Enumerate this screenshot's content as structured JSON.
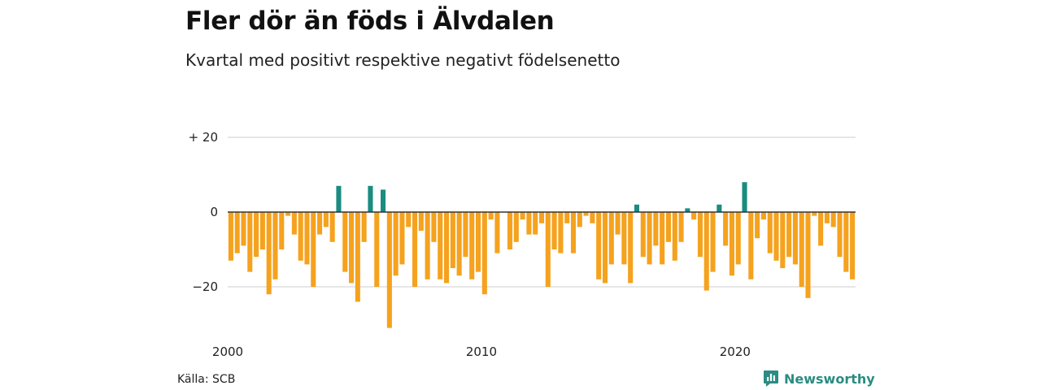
{
  "header": {
    "title": "Fler dör än föds i Älvdalen",
    "subtitle": "Kvartal med positivt respektive negativt födelsenetto"
  },
  "footer": {
    "source": "Källa: SCB",
    "brand": "Newsworthy",
    "brand_icon": "bar-chart-speech-icon"
  },
  "colors": {
    "positive": "#1a8c80",
    "negative": "#f5a21e",
    "gridline": "#dddddd",
    "zeroline": "#333333",
    "brand": "#2a8c82"
  },
  "chart_data": {
    "type": "bar",
    "x_start": "2000 Q1",
    "x_tick_labels": [
      "2000",
      "2010",
      "2020"
    ],
    "y_tick_labels": [
      "+ 20",
      "0",
      "−20"
    ],
    "y_ticks": [
      20,
      0,
      -20
    ],
    "ylim": [
      -31,
      20
    ],
    "grid": true,
    "legend": "none",
    "values": [
      -13,
      -11,
      -9,
      -16,
      -12,
      -10,
      -22,
      -18,
      -10,
      -1,
      -6,
      -13,
      -14,
      -20,
      -6,
      -4,
      -8,
      7,
      -16,
      -19,
      -24,
      -8,
      7,
      -20,
      6,
      -31,
      -17,
      -14,
      -4,
      -20,
      -5,
      -18,
      -8,
      -18,
      -19,
      -15,
      -17,
      -12,
      -18,
      -16,
      -22,
      -2,
      -11,
      0,
      -10,
      -8,
      -2,
      -6,
      -6,
      -3,
      -20,
      -10,
      -11,
      -3,
      -11,
      -4,
      -1,
      -3,
      -18,
      -19,
      -14,
      -6,
      -14,
      -19,
      2,
      -12,
      -14,
      -9,
      -14,
      -8,
      -13,
      -8,
      1,
      -2,
      -12,
      -21,
      -16,
      2,
      -9,
      -17,
      -14,
      8,
      -18,
      -7,
      -2,
      -11,
      -13,
      -15,
      -12,
      -14,
      -20,
      -23,
      -1,
      -9,
      -3,
      -4,
      -12,
      -16,
      -18
    ]
  }
}
